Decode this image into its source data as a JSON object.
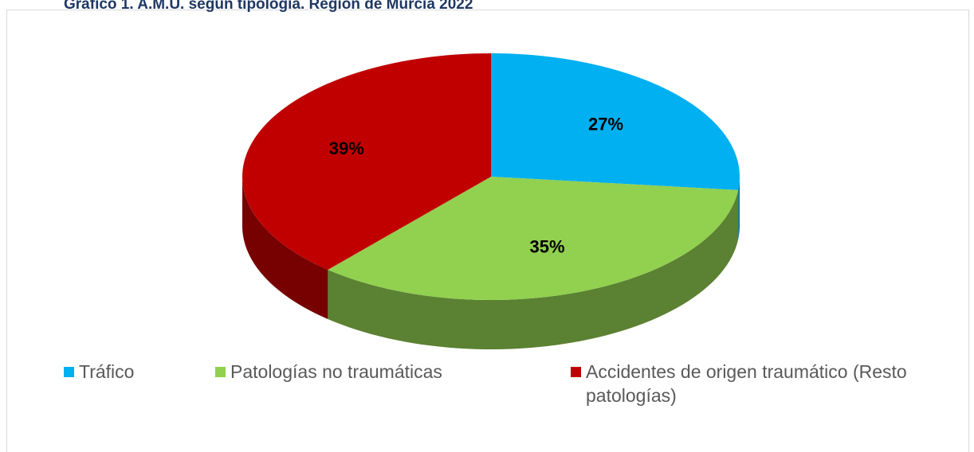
{
  "chart_data": {
    "type": "pie",
    "title": "Gráfico 1. A.M.U. según tipología. Región de Murcia 2022",
    "categories": [
      "Tráfico",
      "Patologías no traumáticas",
      "Accidentes de origen traumático (Resto patologías)"
    ],
    "values": [
      27,
      35,
      39
    ],
    "value_labels": [
      "27%",
      "35%",
      "39%"
    ],
    "colors": [
      "#00b0f0",
      "#92d050",
      "#c00000"
    ],
    "legend": "bottom"
  }
}
